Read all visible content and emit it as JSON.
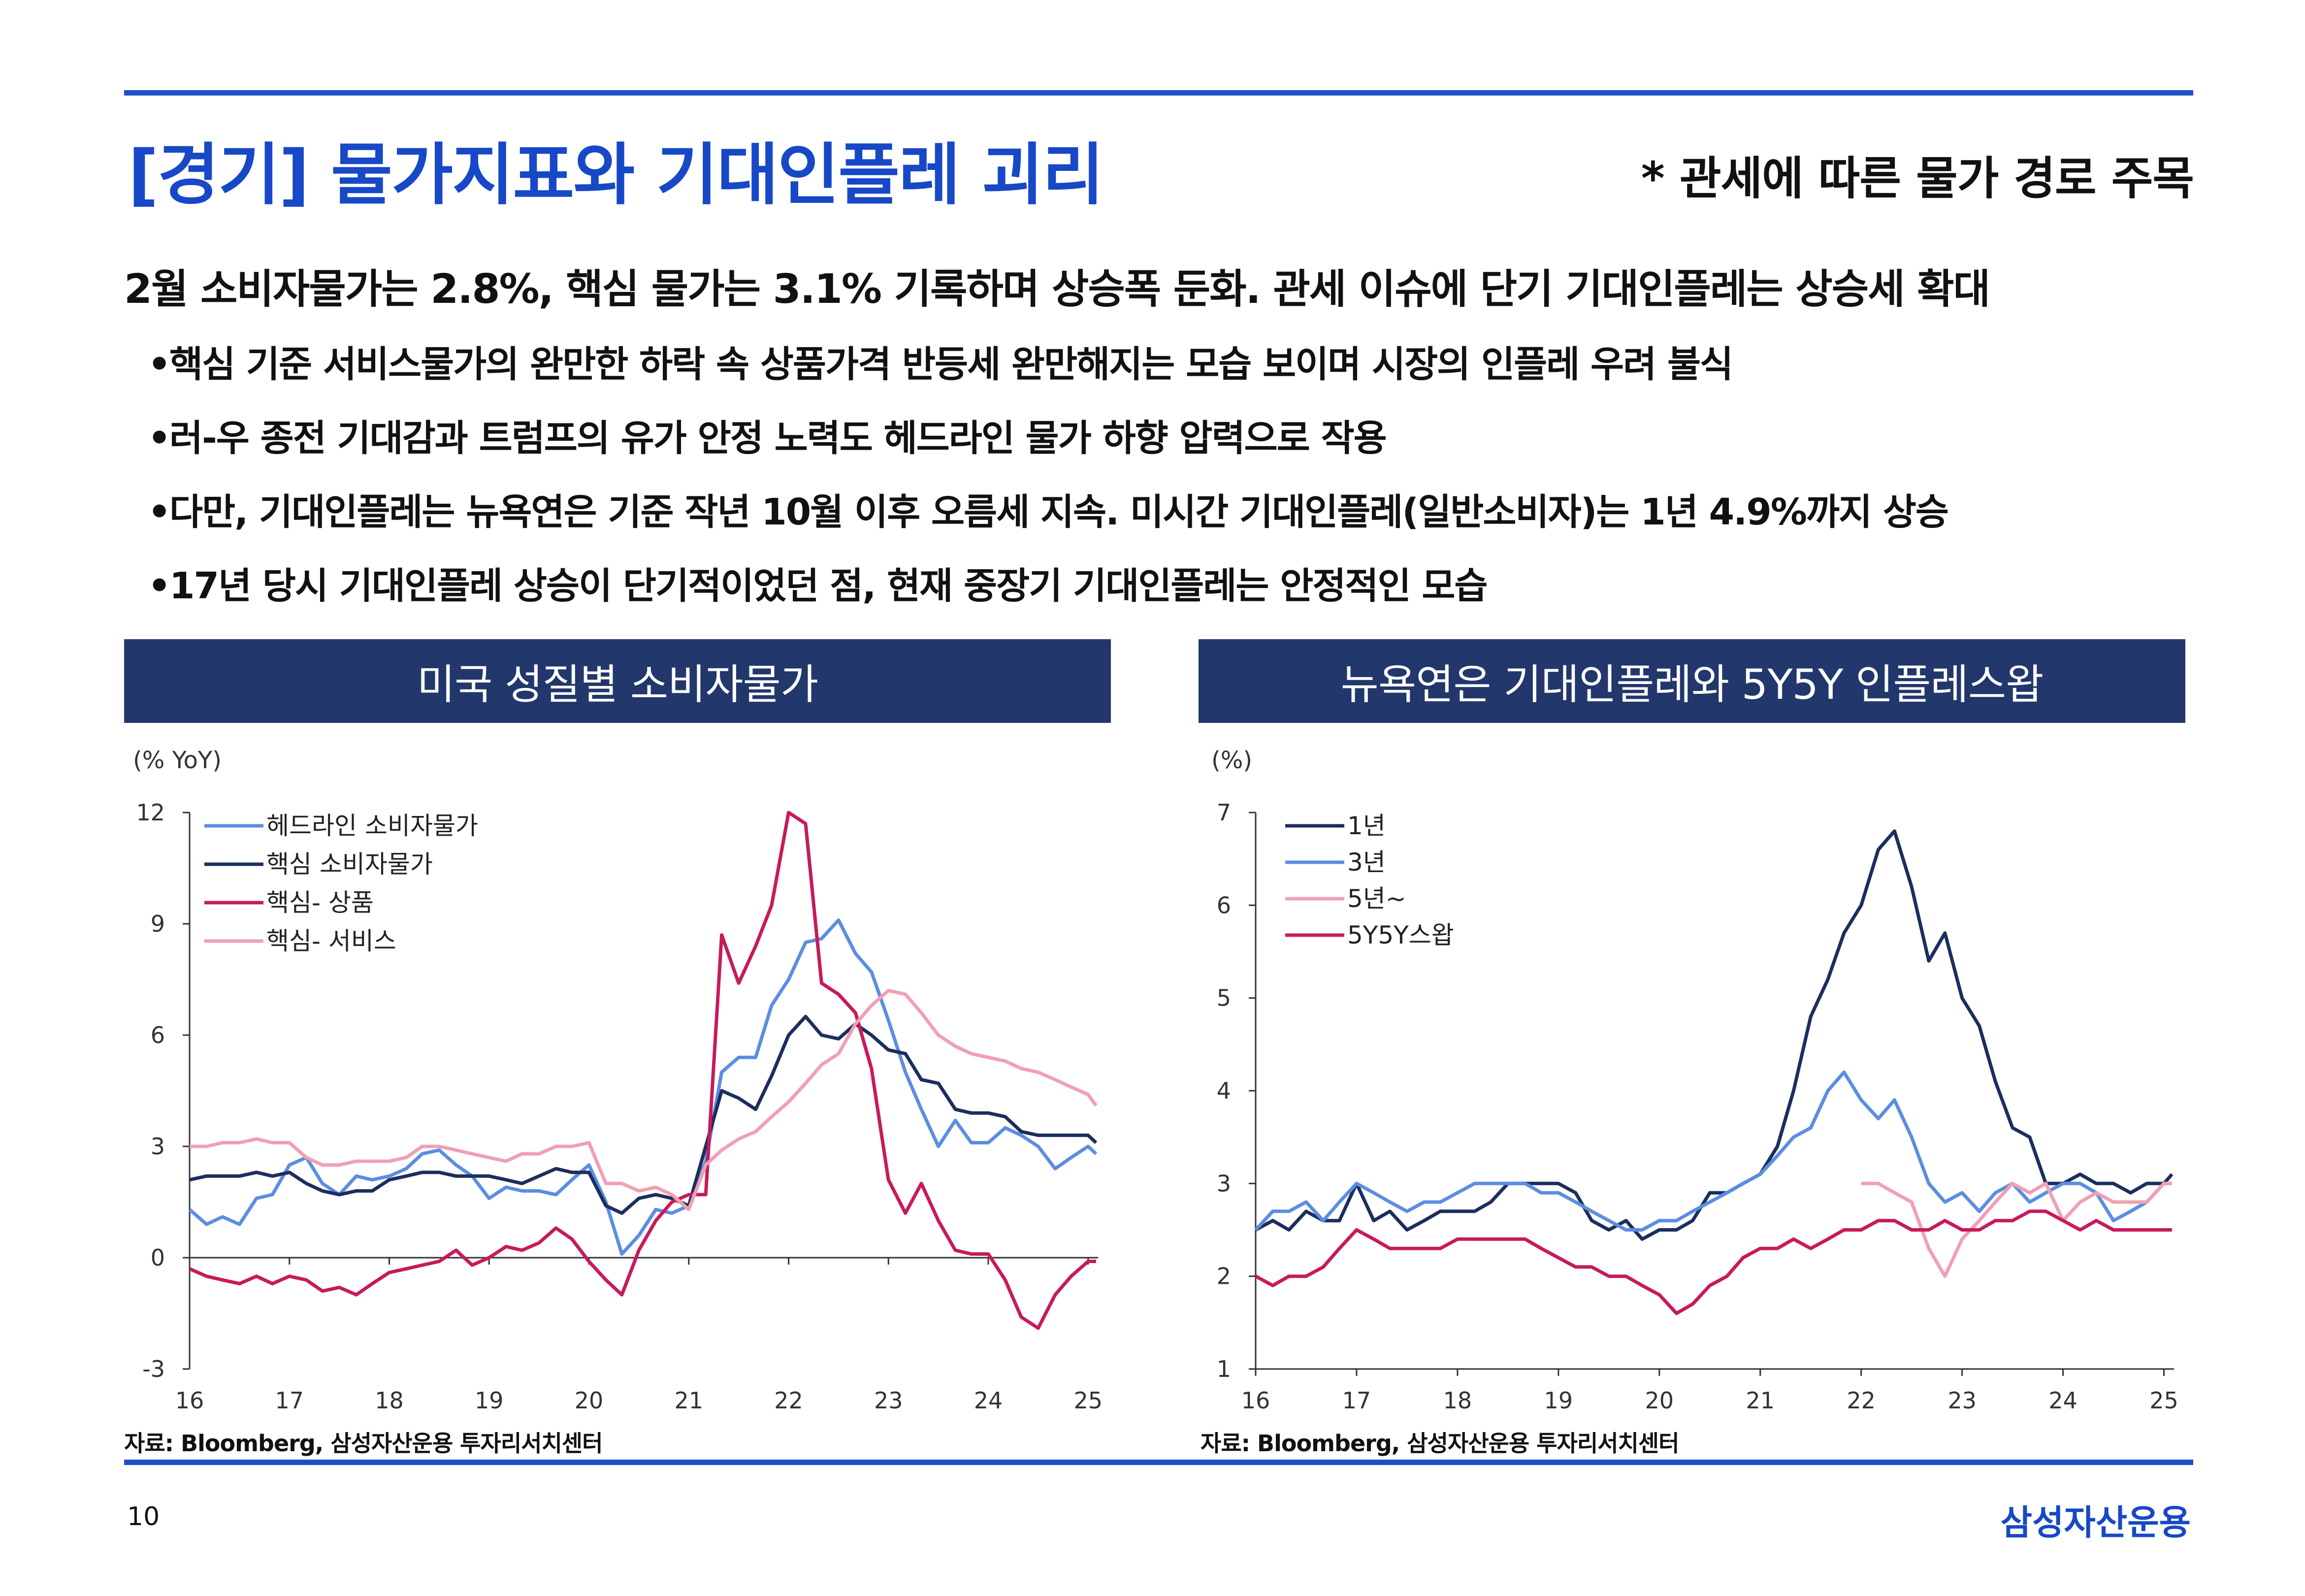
{
  "header": {
    "title": "[경기] 물가지표와 기대인플레 괴리",
    "subtitle": "* 관세에 따른 물가 경로 주목"
  },
  "summary": {
    "headline": "2월 소비자물가는 2.8%, 핵심 물가는 3.1% 기록하며 상승폭 둔화. 관세 이슈에 단기 기대인플레는 상승세 확대",
    "bullet_char": "•",
    "bullets": [
      "핵심 기준 서비스물가의 완만한 하락 속 상품가격 반등세 완만해지는 모습 보이며 시장의 인플레 우려 불식",
      "러-우 종전 기대감과 트럼프의 유가 안정 노력도 헤드라인 물가 하향 압력으로 작용",
      "다만, 기대인플레는 뉴욕연은 기준 작년 10월 이후 오름세 지속. 미시간 기대인플레(일반소비자)는 1년 4.9%까지 상승",
      "17년 당시 기대인플레 상승이 단기적이었던 점, 현재 중장기 기대인플레는 안정적인 모습"
    ]
  },
  "chart_data": [
    {
      "type": "line",
      "title": "미국 성질별 소비자물가",
      "ylabel": "(% YoY)",
      "ylim": [
        -3,
        12
      ],
      "yticks": [
        "12",
        "9",
        "6",
        "3",
        "0",
        "-3"
      ],
      "xlim": [
        16,
        25.1
      ],
      "xticks": [
        "16",
        "17",
        "18",
        "19",
        "20",
        "21",
        "22",
        "23",
        "24",
        "25"
      ],
      "legend_position": "top-left",
      "series": [
        {
          "name": "헤드라인 소비자물가",
          "color": "#5b8ee0",
          "x": [
            16,
            16.17,
            16.33,
            16.5,
            16.67,
            16.83,
            17,
            17.17,
            17.33,
            17.5,
            17.67,
            17.83,
            18,
            18.17,
            18.33,
            18.5,
            18.67,
            18.83,
            19,
            19.17,
            19.33,
            19.5,
            19.67,
            19.83,
            20,
            20.17,
            20.33,
            20.5,
            20.67,
            20.83,
            21,
            21.17,
            21.33,
            21.5,
            21.67,
            21.83,
            22,
            22.17,
            22.33,
            22.5,
            22.67,
            22.83,
            23,
            23.17,
            23.33,
            23.5,
            23.67,
            23.83,
            24,
            24.17,
            24.33,
            24.5,
            24.67,
            24.83,
            25,
            25.08
          ],
          "y": [
            1.3,
            0.9,
            1.1,
            0.9,
            1.6,
            1.7,
            2.5,
            2.7,
            2.0,
            1.7,
            2.2,
            2.1,
            2.2,
            2.4,
            2.8,
            2.9,
            2.5,
            2.2,
            1.6,
            1.9,
            1.8,
            1.8,
            1.7,
            2.1,
            2.5,
            1.5,
            0.1,
            0.6,
            1.3,
            1.2,
            1.4,
            2.6,
            5.0,
            5.4,
            5.4,
            6.8,
            7.5,
            8.5,
            8.6,
            9.1,
            8.2,
            7.7,
            6.4,
            5.0,
            4.0,
            3.0,
            3.7,
            3.1,
            3.1,
            3.5,
            3.3,
            3.0,
            2.4,
            2.7,
            3.0,
            2.8
          ]
        },
        {
          "name": "핵심 소비자물가",
          "color": "#1c2e5e",
          "x": [
            16,
            16.17,
            16.33,
            16.5,
            16.67,
            16.83,
            17,
            17.17,
            17.33,
            17.5,
            17.67,
            17.83,
            18,
            18.17,
            18.33,
            18.5,
            18.67,
            18.83,
            19,
            19.17,
            19.33,
            19.5,
            19.67,
            19.83,
            20,
            20.17,
            20.33,
            20.5,
            20.67,
            20.83,
            21,
            21.17,
            21.33,
            21.5,
            21.67,
            21.83,
            22,
            22.17,
            22.33,
            22.5,
            22.67,
            22.83,
            23,
            23.17,
            23.33,
            23.5,
            23.67,
            23.83,
            24,
            24.17,
            24.33,
            24.5,
            24.67,
            24.83,
            25,
            25.08
          ],
          "y": [
            2.1,
            2.2,
            2.2,
            2.2,
            2.3,
            2.2,
            2.3,
            2.0,
            1.8,
            1.7,
            1.8,
            1.8,
            2.1,
            2.2,
            2.3,
            2.3,
            2.2,
            2.2,
            2.2,
            2.1,
            2.0,
            2.2,
            2.4,
            2.3,
            2.3,
            1.4,
            1.2,
            1.6,
            1.7,
            1.6,
            1.4,
            3.0,
            4.5,
            4.3,
            4.0,
            4.9,
            6.0,
            6.5,
            6.0,
            5.9,
            6.3,
            6.0,
            5.6,
            5.5,
            4.8,
            4.7,
            4.0,
            3.9,
            3.9,
            3.8,
            3.4,
            3.3,
            3.3,
            3.3,
            3.3,
            3.1
          ]
        },
        {
          "name": "핵심- 상품",
          "color": "#c71a5c",
          "x": [
            16,
            16.17,
            16.33,
            16.5,
            16.67,
            16.83,
            17,
            17.17,
            17.33,
            17.5,
            17.67,
            17.83,
            18,
            18.17,
            18.33,
            18.5,
            18.67,
            18.83,
            19,
            19.17,
            19.33,
            19.5,
            19.67,
            19.83,
            20,
            20.17,
            20.33,
            20.5,
            20.67,
            20.83,
            21,
            21.17,
            21.33,
            21.5,
            21.67,
            21.83,
            22,
            22.17,
            22.33,
            22.5,
            22.67,
            22.83,
            23,
            23.17,
            23.33,
            23.5,
            23.67,
            23.83,
            24,
            24.17,
            24.33,
            24.5,
            24.67,
            24.83,
            25,
            25.08
          ],
          "y": [
            -0.3,
            -0.5,
            -0.6,
            -0.7,
            -0.5,
            -0.7,
            -0.5,
            -0.6,
            -0.9,
            -0.8,
            -1.0,
            -0.7,
            -0.4,
            -0.3,
            -0.2,
            -0.1,
            0.2,
            -0.2,
            0.0,
            0.3,
            0.2,
            0.4,
            0.8,
            0.5,
            -0.1,
            -0.6,
            -1.0,
            0.2,
            1.0,
            1.5,
            1.7,
            1.7,
            8.7,
            7.4,
            8.4,
            9.5,
            12.0,
            11.7,
            7.4,
            7.1,
            6.6,
            5.1,
            2.1,
            1.2,
            2.0,
            1.0,
            0.2,
            0.1,
            0.1,
            -0.6,
            -1.6,
            -1.9,
            -1.0,
            -0.5,
            -0.1,
            -0.1
          ]
        },
        {
          "name": "핵심- 서비스",
          "color": "#f0a0b4",
          "x": [
            16,
            16.17,
            16.33,
            16.5,
            16.67,
            16.83,
            17,
            17.17,
            17.33,
            17.5,
            17.67,
            17.83,
            18,
            18.17,
            18.33,
            18.5,
            18.67,
            18.83,
            19,
            19.17,
            19.33,
            19.5,
            19.67,
            19.83,
            20,
            20.17,
            20.33,
            20.5,
            20.67,
            20.83,
            21,
            21.17,
            21.33,
            21.5,
            21.67,
            21.83,
            22,
            22.17,
            22.33,
            22.5,
            22.67,
            22.83,
            23,
            23.17,
            23.33,
            23.5,
            23.67,
            23.83,
            24,
            24.17,
            24.33,
            24.5,
            24.67,
            24.83,
            25,
            25.08
          ],
          "y": [
            3.0,
            3.0,
            3.1,
            3.1,
            3.2,
            3.1,
            3.1,
            2.7,
            2.5,
            2.5,
            2.6,
            2.6,
            2.6,
            2.7,
            3.0,
            3.0,
            2.9,
            2.8,
            2.7,
            2.6,
            2.8,
            2.8,
            3.0,
            3.0,
            3.1,
            2.0,
            2.0,
            1.8,
            1.9,
            1.7,
            1.3,
            2.5,
            2.9,
            3.2,
            3.4,
            3.8,
            4.2,
            4.7,
            5.2,
            5.5,
            6.3,
            6.8,
            7.2,
            7.1,
            6.6,
            6.0,
            5.7,
            5.5,
            5.4,
            5.3,
            5.1,
            5.0,
            4.8,
            4.6,
            4.4,
            4.1
          ]
        }
      ],
      "source": "자료: Bloomberg, 삼성자산운용 투자리서치센터"
    },
    {
      "type": "line",
      "title": "뉴욕연은 기대인플레와 5Y5Y 인플레스왑",
      "ylabel": "(%)",
      "ylim": [
        1,
        7
      ],
      "yticks": [
        "7",
        "6",
        "5",
        "4",
        "3",
        "2",
        "1"
      ],
      "xlim": [
        16,
        25.1
      ],
      "xticks": [
        "16",
        "17",
        "18",
        "19",
        "20",
        "21",
        "22",
        "23",
        "24",
        "25"
      ],
      "legend_position": "top-left",
      "series": [
        {
          "name": "1년",
          "color": "#1c2e5e",
          "x": [
            16,
            16.17,
            16.33,
            16.5,
            16.67,
            16.83,
            17,
            17.17,
            17.33,
            17.5,
            17.67,
            17.83,
            18,
            18.17,
            18.33,
            18.5,
            18.67,
            18.83,
            19,
            19.17,
            19.33,
            19.5,
            19.67,
            19.83,
            20,
            20.17,
            20.33,
            20.5,
            20.67,
            20.83,
            21,
            21.17,
            21.33,
            21.5,
            21.67,
            21.83,
            22,
            22.17,
            22.33,
            22.5,
            22.67,
            22.83,
            23,
            23.17,
            23.33,
            23.5,
            23.67,
            23.83,
            24,
            24.17,
            24.33,
            24.5,
            24.67,
            24.83,
            25,
            25.08
          ],
          "y": [
            2.5,
            2.6,
            2.5,
            2.7,
            2.6,
            2.6,
            3.0,
            2.6,
            2.7,
            2.5,
            2.6,
            2.7,
            2.7,
            2.7,
            2.8,
            3.0,
            3.0,
            3.0,
            3.0,
            2.9,
            2.6,
            2.5,
            2.6,
            2.4,
            2.5,
            2.5,
            2.6,
            2.9,
            2.9,
            3.0,
            3.1,
            3.4,
            4.0,
            4.8,
            5.2,
            5.7,
            6.0,
            6.6,
            6.8,
            6.2,
            5.4,
            5.7,
            5.0,
            4.7,
            4.1,
            3.6,
            3.5,
            3.0,
            3.0,
            3.1,
            3.0,
            3.0,
            2.9,
            3.0,
            3.0,
            3.1
          ]
        },
        {
          "name": "3년",
          "color": "#5b8ee0",
          "x": [
            16,
            16.17,
            16.33,
            16.5,
            16.67,
            16.83,
            17,
            17.17,
            17.33,
            17.5,
            17.67,
            17.83,
            18,
            18.17,
            18.33,
            18.5,
            18.67,
            18.83,
            19,
            19.17,
            19.33,
            19.5,
            19.67,
            19.83,
            20,
            20.17,
            20.33,
            20.5,
            20.67,
            20.83,
            21,
            21.17,
            21.33,
            21.5,
            21.67,
            21.83,
            22,
            22.17,
            22.33,
            22.5,
            22.67,
            22.83,
            23,
            23.17,
            23.33,
            23.5,
            23.67,
            23.83,
            24,
            24.17,
            24.33,
            24.5,
            24.67,
            24.83,
            25,
            25.08
          ],
          "y": [
            2.5,
            2.7,
            2.7,
            2.8,
            2.6,
            2.8,
            3.0,
            2.9,
            2.8,
            2.7,
            2.8,
            2.8,
            2.9,
            3.0,
            3.0,
            3.0,
            3.0,
            2.9,
            2.9,
            2.8,
            2.7,
            2.6,
            2.5,
            2.5,
            2.6,
            2.6,
            2.7,
            2.8,
            2.9,
            3.0,
            3.1,
            3.3,
            3.5,
            3.6,
            4.0,
            4.2,
            3.9,
            3.7,
            3.9,
            3.5,
            3.0,
            2.8,
            2.9,
            2.7,
            2.9,
            3.0,
            2.8,
            2.9,
            3.0,
            3.0,
            2.9,
            2.6,
            2.7,
            2.8,
            3.0,
            3.0
          ]
        },
        {
          "name": "5년~",
          "color": "#f0a0b4",
          "x": [
            22,
            22.17,
            22.33,
            22.5,
            22.67,
            22.83,
            23,
            23.17,
            23.33,
            23.5,
            23.67,
            23.83,
            24,
            24.17,
            24.33,
            24.5,
            24.67,
            24.83,
            25,
            25.08
          ],
          "y": [
            3.0,
            3.0,
            2.9,
            2.8,
            2.3,
            2.0,
            2.4,
            2.6,
            2.8,
            3.0,
            2.9,
            3.0,
            2.6,
            2.8,
            2.9,
            2.8,
            2.8,
            2.8,
            3.0,
            3.0
          ]
        },
        {
          "name": "5Y5Y스왑",
          "color": "#c71a5c",
          "x": [
            16,
            16.17,
            16.33,
            16.5,
            16.67,
            16.83,
            17,
            17.17,
            17.33,
            17.5,
            17.67,
            17.83,
            18,
            18.17,
            18.33,
            18.5,
            18.67,
            18.83,
            19,
            19.17,
            19.33,
            19.5,
            19.67,
            19.83,
            20,
            20.17,
            20.33,
            20.5,
            20.67,
            20.83,
            21,
            21.17,
            21.33,
            21.5,
            21.67,
            21.83,
            22,
            22.17,
            22.33,
            22.5,
            22.67,
            22.83,
            23,
            23.17,
            23.33,
            23.5,
            23.67,
            23.83,
            24,
            24.17,
            24.33,
            24.5,
            24.67,
            24.83,
            25,
            25.08
          ],
          "y": [
            2.0,
            1.9,
            2.0,
            2.0,
            2.1,
            2.3,
            2.5,
            2.4,
            2.3,
            2.3,
            2.3,
            2.3,
            2.4,
            2.4,
            2.4,
            2.4,
            2.4,
            2.3,
            2.2,
            2.1,
            2.1,
            2.0,
            2.0,
            1.9,
            1.8,
            1.6,
            1.7,
            1.9,
            2.0,
            2.2,
            2.3,
            2.3,
            2.4,
            2.3,
            2.4,
            2.5,
            2.5,
            2.6,
            2.6,
            2.5,
            2.5,
            2.6,
            2.5,
            2.5,
            2.6,
            2.6,
            2.7,
            2.7,
            2.6,
            2.5,
            2.6,
            2.5,
            2.5,
            2.5,
            2.5,
            2.5
          ]
        }
      ],
      "source": "자료: Bloomberg, 삼성자산운용 투자리서치센터"
    }
  ],
  "footer": {
    "page_number": "10",
    "brand": "삼성자산운용"
  }
}
